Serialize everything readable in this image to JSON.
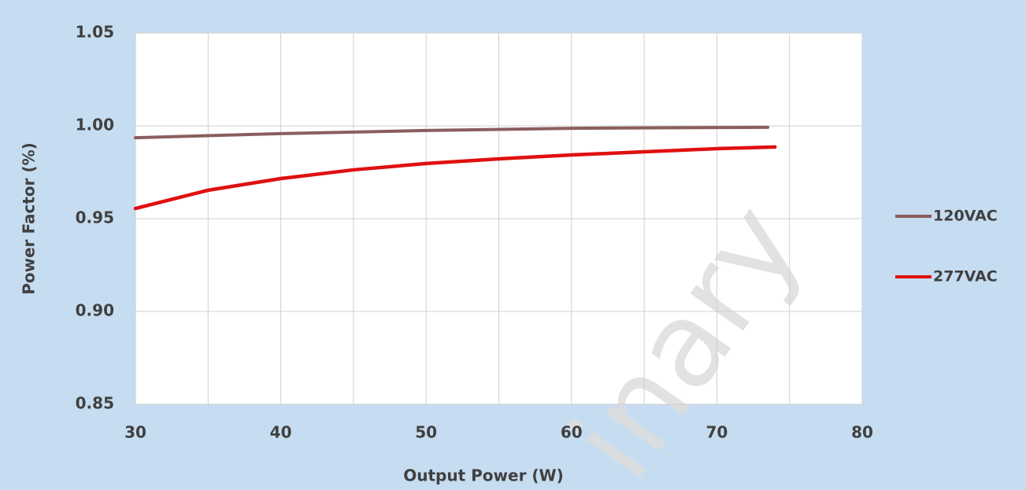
{
  "chart_data": {
    "type": "line",
    "xlabel": "Output Power (W)",
    "ylabel": "Power Factor (%)",
    "watermark": "inary",
    "xlim": [
      30,
      80
    ],
    "xticks": [
      30,
      40,
      50,
      60,
      70,
      80
    ],
    "xminorticks": [
      35,
      45,
      55,
      65,
      75
    ],
    "ylim": [
      0.85,
      1.05
    ],
    "yticks": [
      {
        "value": 0.85,
        "label": "0.85"
      },
      {
        "value": 0.9,
        "label": "0.90"
      },
      {
        "value": 0.95,
        "label": "0.95"
      },
      {
        "value": 1.0,
        "label": "1.00"
      },
      {
        "value": 1.05,
        "label": "1.05"
      }
    ],
    "grid": true,
    "legend": "right",
    "series": [
      {
        "name": "120VAC",
        "color": "#8b5e5e",
        "x": [
          30,
          40,
          50,
          60,
          73.5
        ],
        "values": [
          0.9936,
          0.9958,
          0.9975,
          0.9987,
          0.9992
        ]
      },
      {
        "name": "277VAC",
        "color": "#e01010",
        "x": [
          30,
          35,
          40,
          45,
          50,
          55,
          60,
          65,
          70,
          74
        ],
        "values": [
          0.9555,
          0.9653,
          0.9716,
          0.9763,
          0.9797,
          0.9822,
          0.9843,
          0.986,
          0.9877,
          0.9886
        ]
      }
    ]
  }
}
